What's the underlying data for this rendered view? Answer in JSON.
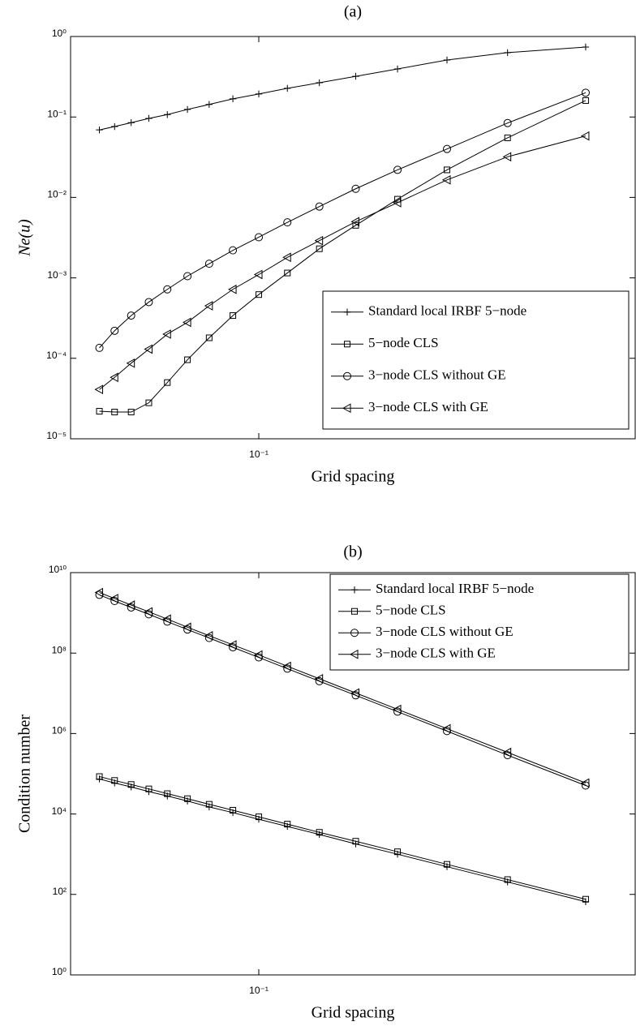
{
  "chart_data": [
    {
      "type": "line",
      "title": "(a)",
      "xlabel": "Grid spacing",
      "ylabel": "Ne(u)",
      "xlog": true,
      "ylog": true,
      "legend": "lower right",
      "x": [
        0.0556,
        0.0588,
        0.0625,
        0.0667,
        0.0714,
        0.0769,
        0.0833,
        0.0909,
        0.1,
        0.1111,
        0.125,
        0.1429,
        0.1667,
        0.2,
        0.25,
        0.3333
      ],
      "xlim": [
        0.05,
        0.4
      ],
      "xticks": [
        {
          "value": 0.1,
          "label": "10⁻¹"
        }
      ],
      "ylim": [
        1e-05,
        1
      ],
      "yticks": [
        {
          "value": 1e-05,
          "label": "10⁻⁵"
        },
        {
          "value": 0.0001,
          "label": "10⁻⁴"
        },
        {
          "value": 0.001,
          "label": "10⁻³"
        },
        {
          "value": 0.01,
          "label": "10⁻²"
        },
        {
          "value": 0.1,
          "label": "10⁻¹"
        },
        {
          "value": 1,
          "label": "10⁰"
        }
      ],
      "series": [
        {
          "name": "Standard local IRBF 5−node",
          "color": "#000000",
          "marker": "plus",
          "values": [
            0.069,
            0.076,
            0.085,
            0.096,
            0.107,
            0.124,
            0.143,
            0.168,
            0.193,
            0.227,
            0.266,
            0.32,
            0.395,
            0.51,
            0.63,
            0.74
          ]
        },
        {
          "name": "5−node CLS",
          "color": "#000000",
          "marker": "square",
          "values": [
            2.2e-05,
            2.15e-05,
            2.15e-05,
            2.8e-05,
            5e-05,
            9.6e-05,
            0.00018,
            0.00034,
            0.00062,
            0.00115,
            0.0023,
            0.0045,
            0.0095,
            0.022,
            0.055,
            0.16
          ]
        },
        {
          "name": "3−node CLS without GE",
          "color": "#000000",
          "marker": "circle",
          "values": [
            0.000135,
            0.00022,
            0.00034,
            0.0005,
            0.00072,
            0.00105,
            0.0015,
            0.0022,
            0.0032,
            0.0049,
            0.0077,
            0.0128,
            0.022,
            0.04,
            0.084,
            0.2
          ]
        },
        {
          "name": "3−node CLS with GE",
          "color": "#000000",
          "marker": "triangle-left",
          "values": [
            4.1e-05,
            5.8e-05,
            8.7e-05,
            0.00013,
            0.0002,
            0.00028,
            0.00045,
            0.00072,
            0.0011,
            0.0018,
            0.0029,
            0.005,
            0.0086,
            0.0165,
            0.032,
            0.058
          ]
        }
      ]
    },
    {
      "type": "line",
      "title": "(b)",
      "xlabel": "Grid spacing",
      "ylabel": "Condition number",
      "xlog": true,
      "ylog": true,
      "legend": "upper right",
      "x": [
        0.0556,
        0.0588,
        0.0625,
        0.0667,
        0.0714,
        0.0769,
        0.0833,
        0.0909,
        0.1,
        0.1111,
        0.125,
        0.1429,
        0.1667,
        0.2,
        0.25,
        0.3333
      ],
      "xlim": [
        0.05,
        0.4
      ],
      "xticks": [
        {
          "value": 0.1,
          "label": "10⁻¹"
        }
      ],
      "ylim": [
        1,
        10000000000
      ],
      "yticks": [
        {
          "value": 1,
          "label": "10⁰"
        },
        {
          "value": 100,
          "label": "10²"
        },
        {
          "value": 10000,
          "label": "10⁴"
        },
        {
          "value": 1000000,
          "label": "10⁶"
        },
        {
          "value": 100000000,
          "label": "10⁸"
        },
        {
          "value": 10000000000,
          "label": "10¹⁰"
        }
      ],
      "series": [
        {
          "name": "Standard local IRBF 5−node",
          "color": "#000000",
          "marker": "plus",
          "values": [
            74000,
            59000,
            47000,
            36000,
            28000,
            21000,
            15000,
            10800,
            7400,
            4900,
            3100,
            1800,
            1000,
            490,
            204,
            66
          ]
        },
        {
          "name": "5−node CLS",
          "color": "#000000",
          "marker": "square",
          "values": [
            85000,
            68000,
            54000,
            42000,
            32000,
            24000,
            17400,
            12400,
            8500,
            5600,
            3500,
            2100,
            1150,
            560,
            234,
            76
          ]
        },
        {
          "name": "3−node CLS without GE",
          "color": "#000000",
          "marker": "circle",
          "values": [
            2800000000,
            1970000000,
            1360000000,
            920000000,
            605000000,
            385000000,
            237000000,
            139000000,
            78000000,
            41000000,
            20000000,
            8900000,
            3500000,
            1150000,
            290000,
            51000
          ]
        },
        {
          "name": "3−node CLS with GE",
          "color": "#000000",
          "marker": "triangle-left",
          "values": [
            3200000000,
            2270000000,
            1560000000,
            1060000000,
            700000000,
            440000000,
            270000000,
            160000000,
            90000000,
            47000000,
            23000000,
            10200000,
            4000000,
            1320000,
            340000,
            59000
          ]
        }
      ]
    }
  ]
}
